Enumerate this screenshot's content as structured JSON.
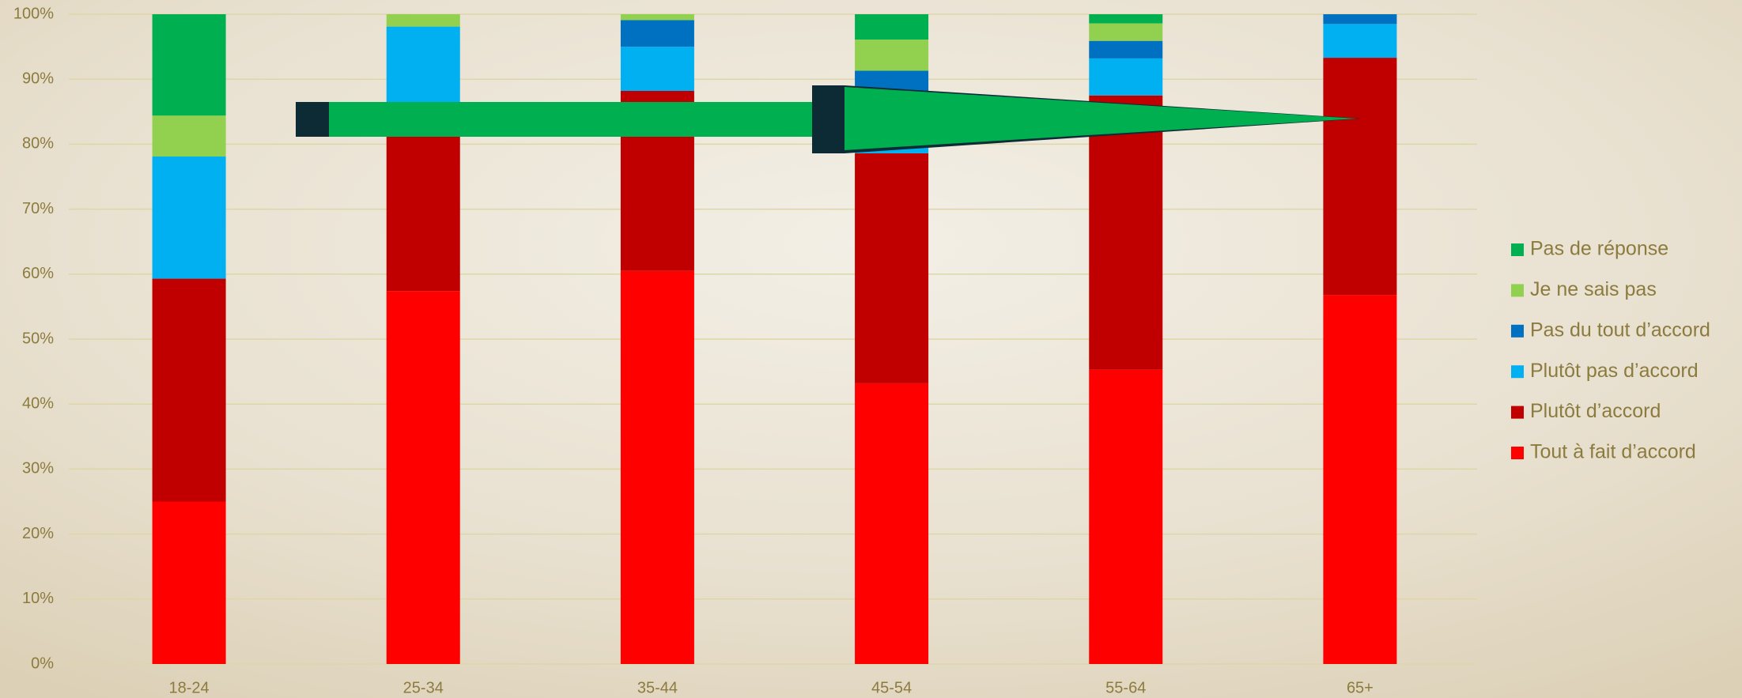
{
  "chart_data": {
    "type": "stacked_bar",
    "categories": [
      "18-24",
      "25-34",
      "35-44",
      "45-54",
      "55-64",
      "65+"
    ],
    "series": [
      {
        "name": "Tout à fait d’accord",
        "color": "#ff0000",
        "values": [
          25,
          57.4,
          60.5,
          43.2,
          45.3,
          56.8
        ]
      },
      {
        "name": "Plutôt d’accord",
        "color": "#c00000",
        "values": [
          34.3,
          28.6,
          27.7,
          35.4,
          42.2,
          36.5
        ]
      },
      {
        "name": "Plutôt pas d’accord",
        "color": "#00b0f0",
        "values": [
          18.8,
          12.1,
          6.8,
          9.4,
          5.7,
          5.2
        ]
      },
      {
        "name": "Pas du tout d’accord",
        "color": "#0070c0",
        "values": [
          0,
          0,
          4.1,
          3.3,
          2.7,
          1.5
        ]
      },
      {
        "name": "Je ne sais pas",
        "color": "#92d050",
        "values": [
          6.3,
          1.9,
          0.9,
          4.8,
          2.7,
          0
        ]
      },
      {
        "name": "Pas de réponse",
        "color": "#00b050",
        "values": [
          15.6,
          0,
          0,
          3.9,
          1.4,
          0
        ]
      }
    ],
    "ylim": [
      0,
      100
    ],
    "yticks": [
      {
        "value": 0,
        "label": "0%"
      },
      {
        "value": 10,
        "label": "10%"
      },
      {
        "value": 20,
        "label": "20%"
      },
      {
        "value": 30,
        "label": "30%"
      },
      {
        "value": 40,
        "label": "40%"
      },
      {
        "value": 50,
        "label": "50%"
      },
      {
        "value": 60,
        "label": "60%"
      },
      {
        "value": 70,
        "label": "70%"
      },
      {
        "value": 80,
        "label": "80%"
      },
      {
        "value": 90,
        "label": "90%"
      },
      {
        "value": 100,
        "label": "100%"
      }
    ],
    "grid": true,
    "legend": "right"
  }
}
